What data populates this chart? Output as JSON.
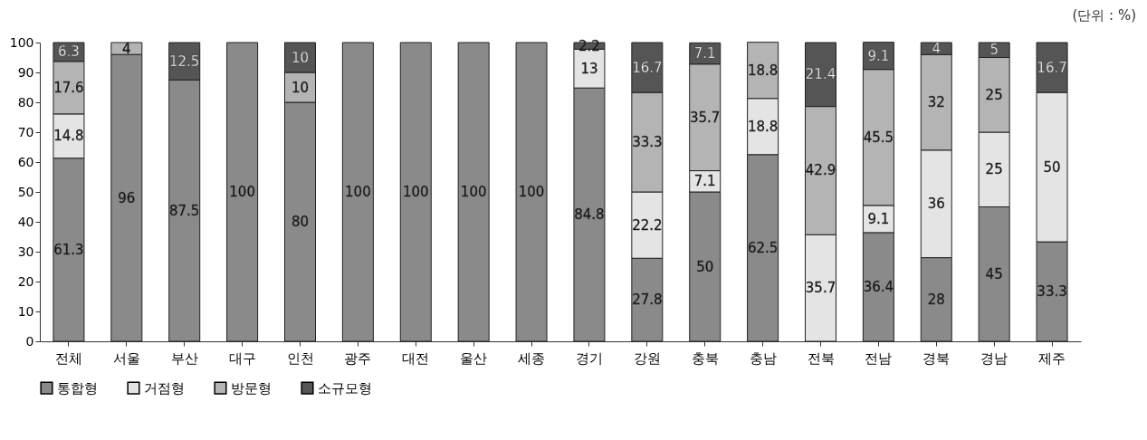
{
  "chart_data": {
    "type": "bar",
    "stacked": true,
    "data_labels": true,
    "legend": "bottom",
    "grid": false,
    "annotations": [
      "(단위 : %)"
    ],
    "categories": [
      "전체",
      "서울",
      "부산",
      "대구",
      "인천",
      "광주",
      "대전",
      "울산",
      "세종",
      "경기",
      "강원",
      "충북",
      "충남",
      "전북",
      "전남",
      "경북",
      "경남",
      "제주"
    ],
    "ylim": [
      0,
      100
    ],
    "yticks": [
      0,
      10,
      20,
      30,
      40,
      50,
      60,
      70,
      80,
      90,
      100
    ],
    "series": [
      {
        "name": "통합형",
        "color": "#8a8a8a",
        "values": [
          61.3,
          96,
          87.5,
          100,
          80,
          100,
          100,
          100,
          100,
          84.8,
          27.8,
          50,
          62.5,
          null,
          36.4,
          28,
          45,
          33.3
        ]
      },
      {
        "name": "거점형",
        "color": "#e4e4e4",
        "values": [
          14.8,
          null,
          null,
          null,
          null,
          null,
          null,
          null,
          null,
          13,
          22.2,
          7.1,
          18.8,
          35.7,
          9.1,
          36,
          25,
          50
        ]
      },
      {
        "name": "방문형",
        "color": "#b4b4b4",
        "values": [
          17.6,
          4,
          null,
          null,
          10,
          null,
          null,
          null,
          null,
          null,
          33.3,
          35.7,
          18.8,
          42.9,
          45.5,
          32,
          25,
          null
        ]
      },
      {
        "name": "소규모형",
        "color": "#555555",
        "values": [
          6.3,
          null,
          12.5,
          null,
          10,
          null,
          null,
          null,
          null,
          2.2,
          16.7,
          7.1,
          null,
          21.4,
          9.1,
          4,
          5,
          16.7
        ]
      }
    ]
  }
}
